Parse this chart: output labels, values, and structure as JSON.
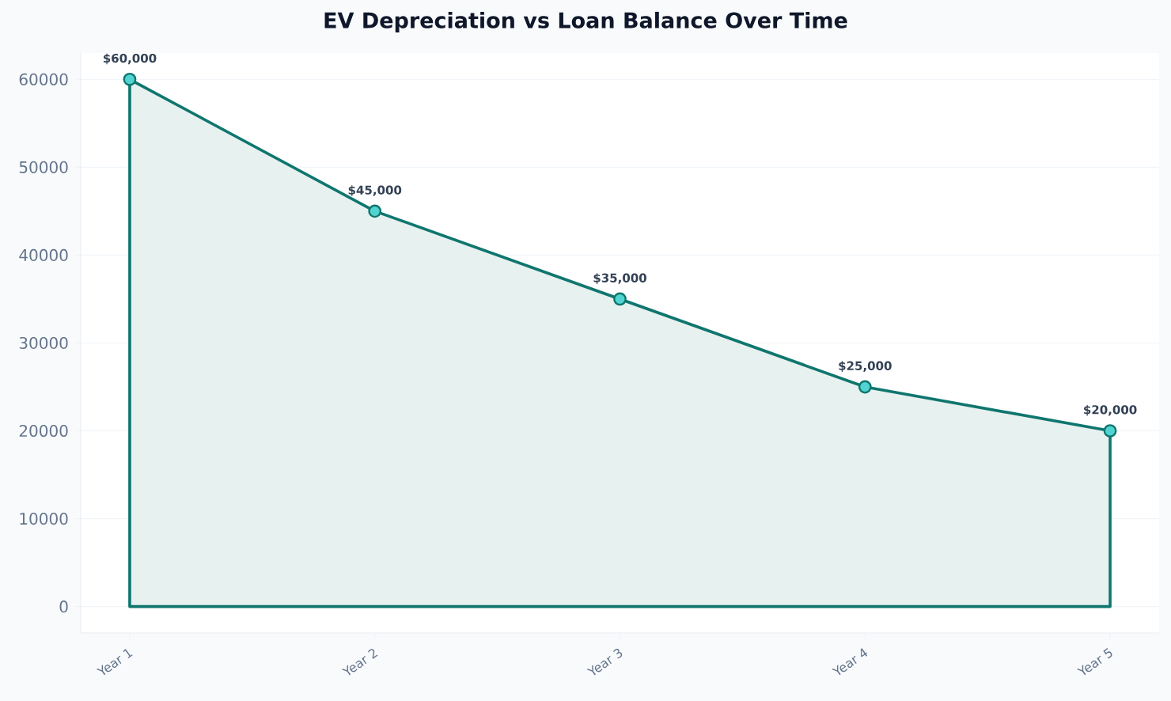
{
  "chart_data": {
    "type": "area",
    "title": "EV Depreciation vs Loan Balance Over Time",
    "categories": [
      "Year 1",
      "Year 2",
      "Year 3",
      "Year 4",
      "Year 5"
    ],
    "series": [
      {
        "color": "#0f766e",
        "values": [
          60000,
          45000,
          35000,
          25000,
          20000
        ]
      }
    ],
    "value_labels": [
      "$60,000",
      "$45,000",
      "$35,000",
      "$25,000",
      "$20,000"
    ],
    "ylim": [
      -3000,
      63000
    ],
    "yticks": [
      0,
      10000,
      20000,
      30000,
      40000,
      50000,
      60000
    ],
    "grid": "y",
    "marker": "circle",
    "line_style": "solid"
  }
}
